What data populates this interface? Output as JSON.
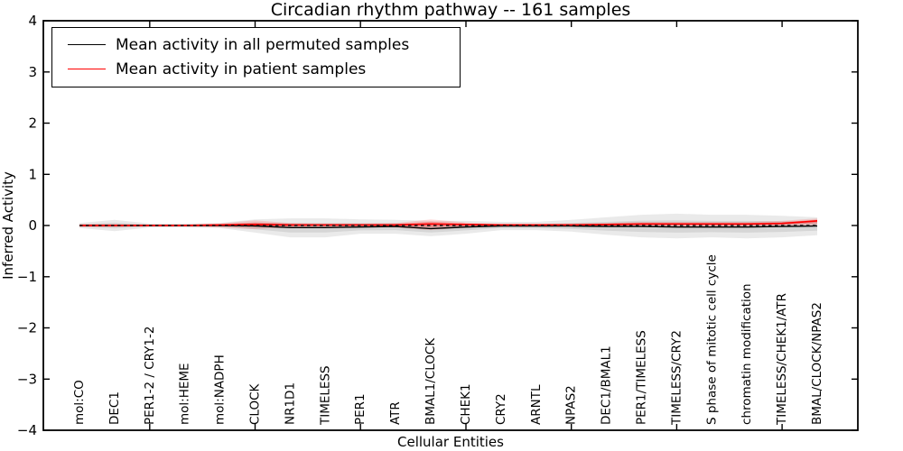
{
  "title": "Circadian rhythm pathway -- 161 samples",
  "axes": {
    "ylabel": "Inferred Activity",
    "xlabel": "Cellular Entities",
    "yticks": [
      "4",
      "3",
      "2",
      "1",
      "0",
      "−1",
      "−2",
      "−3",
      "−4"
    ]
  },
  "legend": {
    "items": [
      {
        "label": "Mean activity in all permuted samples",
        "color": "#000000"
      },
      {
        "label": "Mean activity in patient samples",
        "color": "#ff0000"
      }
    ]
  },
  "colors": {
    "spine": "#000000",
    "permuted_line": "#000000",
    "patient_line": "#ff0000",
    "permuted_band": "#a0a0a0",
    "patient_band": "#ff0000",
    "zero_line": "#111111"
  },
  "chart_data": {
    "type": "line",
    "title": "Circadian rhythm pathway -- 161 samples",
    "xlabel": "Cellular Entities",
    "ylabel": "Inferred Activity",
    "ylim": [
      -4,
      4
    ],
    "grid": false,
    "legend_position": "upper left",
    "categories": [
      "mol:CO",
      "DEC1",
      "PER1-2 / CRY1-2",
      "mol:HEME",
      "mol:NADPH",
      "CLOCK",
      "NR1D1",
      "TIMELESS",
      "PER1",
      "ATR",
      "BMAL1/CLOCK",
      "CHEK1",
      "CRY2",
      "ARNTL",
      "NPAS2",
      "DEC1/BMAL1",
      "PER1/TIMELESS",
      "TIMELESS/CRY2",
      "S phase of mitotic cell cycle",
      "chromatin modification",
      "TIMELESS/CHEK1/ATR",
      "BMAL/CLOCK/NPAS2"
    ],
    "series": [
      {
        "name": "Mean activity in all permuted samples",
        "color": "#000000",
        "values": [
          0,
          0,
          0,
          0,
          0,
          -0.01,
          -0.04,
          -0.04,
          -0.03,
          -0.02,
          -0.06,
          -0.03,
          -0.01,
          -0.01,
          -0.01,
          -0.02,
          -0.02,
          -0.03,
          -0.03,
          -0.03,
          -0.02,
          -0.01
        ]
      },
      {
        "name": "Mean activity in patient samples",
        "color": "#ff0000",
        "values": [
          0,
          0,
          0,
          0,
          0.01,
          0.02,
          0.01,
          0.01,
          0.01,
          0.01,
          0.03,
          0.02,
          0.01,
          0.01,
          0.01,
          0.02,
          0.03,
          0.03,
          0.03,
          0.03,
          0.04,
          0.09
        ]
      }
    ],
    "bands": [
      {
        "name": "permuted-samples-confidence-band",
        "color": "#a0a0a0",
        "upper": [
          0.05,
          0.11,
          0.04,
          0.04,
          0.05,
          0.12,
          0.14,
          0.14,
          0.12,
          0.11,
          0.09,
          0.09,
          0.07,
          0.07,
          0.11,
          0.16,
          0.21,
          0.23,
          0.21,
          0.21,
          0.19,
          0.16
        ],
        "lower": [
          -0.05,
          -0.11,
          -0.04,
          -0.04,
          -0.05,
          -0.14,
          -0.23,
          -0.23,
          -0.16,
          -0.16,
          -0.21,
          -0.16,
          -0.09,
          -0.09,
          -0.12,
          -0.18,
          -0.23,
          -0.25,
          -0.23,
          -0.25,
          -0.23,
          -0.19
        ]
      },
      {
        "name": "patient-samples-confidence-band",
        "color": "#ff0000",
        "upper": [
          0.03,
          0.03,
          0.02,
          0.02,
          0.04,
          0.1,
          0.05,
          0.04,
          0.04,
          0.05,
          0.12,
          0.06,
          0.03,
          0.03,
          0.04,
          0.05,
          0.07,
          0.07,
          0.07,
          0.07,
          0.09,
          0.14
        ],
        "lower": [
          -0.03,
          -0.03,
          -0.02,
          -0.02,
          -0.04,
          -0.07,
          -0.04,
          -0.03,
          -0.03,
          -0.04,
          -0.09,
          -0.04,
          -0.02,
          -0.02,
          -0.02,
          -0.02,
          -0.02,
          -0.02,
          -0.02,
          -0.02,
          -0.01,
          0.0
        ]
      }
    ],
    "zero_reference_line": 0
  }
}
